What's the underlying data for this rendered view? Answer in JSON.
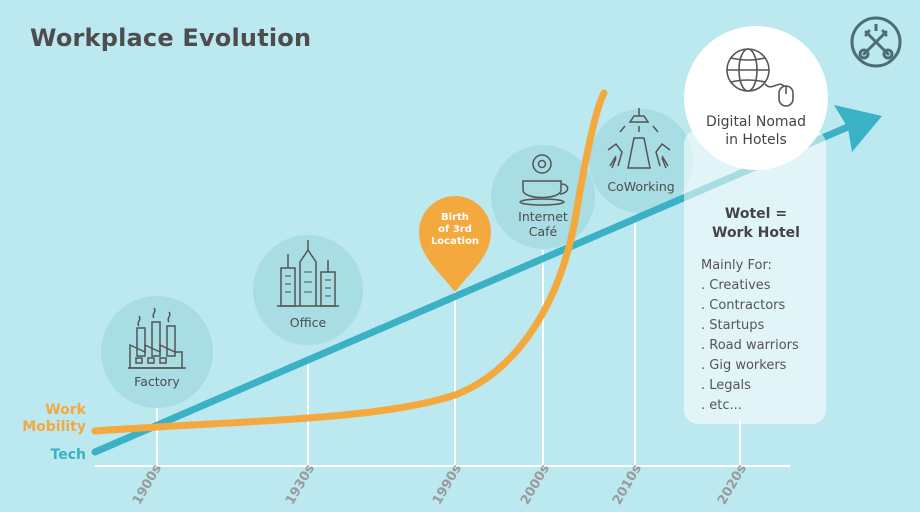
{
  "title": "Workplace Evolution",
  "series": {
    "work_mobility": "Work\nMobility",
    "tech": "Tech"
  },
  "timeline": [
    "1900s",
    "1930s",
    "1990s",
    "2000s",
    "2010s",
    "2020s"
  ],
  "stages": {
    "factory": "Factory",
    "office": "Office",
    "birth": "Birth\nof 3rd\nLocation",
    "internet_cafe": "Internet\nCafé",
    "coworking": "CoWorking",
    "digital_nomad": "Digital Nomad\nin Hotels"
  },
  "wotel": {
    "title": "Wotel =\nWork Hotel",
    "mainly_for": "Mainly For:",
    "items": [
      ". Creatives",
      ". Contractors",
      ". Startups",
      ". Road warriors",
      ". Gig workers",
      ". Legals",
      ". etc..."
    ]
  },
  "colors": {
    "background": "#bce8ef",
    "work_mobility": "#f4a93f",
    "tech": "#3ab1c4",
    "circle": "#a7dde3"
  },
  "icons": [
    "factory-icon",
    "office-buildings-icon",
    "cafe-cup-icon",
    "coworking-icon",
    "globe-mouse-icon",
    "crossed-keys-logo"
  ]
}
